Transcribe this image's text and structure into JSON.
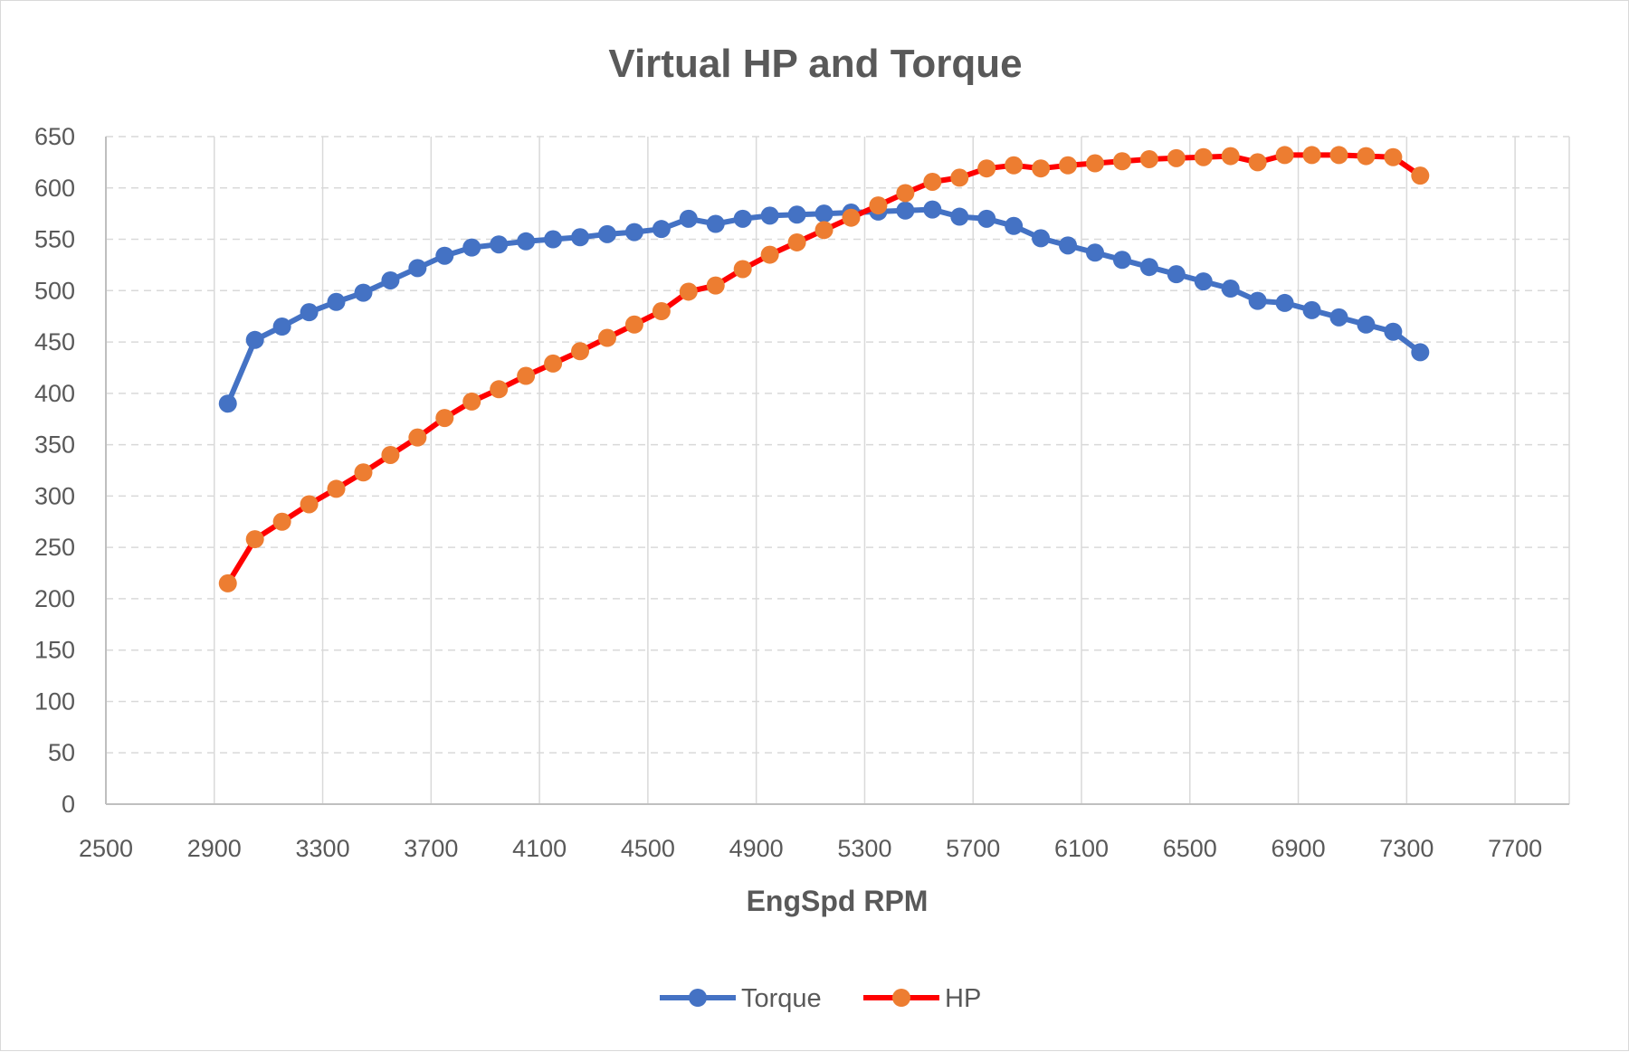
{
  "chart_data": {
    "type": "line",
    "title": "Virtual HP and Torque",
    "xlabel": "EngSpd RPM",
    "ylabel": "",
    "xlim": [
      2500,
      7900
    ],
    "ylim": [
      0,
      650
    ],
    "x_ticks": [
      2500,
      2900,
      3300,
      3700,
      4100,
      4500,
      4900,
      5300,
      5700,
      6100,
      6500,
      6900,
      7300,
      7700
    ],
    "y_ticks": [
      0,
      50,
      100,
      150,
      200,
      250,
      300,
      350,
      400,
      450,
      500,
      550,
      600,
      650
    ],
    "grid": true,
    "legend_position": "bottom",
    "x": [
      2950,
      3050,
      3150,
      3250,
      3350,
      3450,
      3550,
      3650,
      3750,
      3850,
      3950,
      4050,
      4150,
      4250,
      4350,
      4450,
      4550,
      4650,
      4750,
      4850,
      4950,
      5050,
      5150,
      5250,
      5350,
      5450,
      5550,
      5650,
      5750,
      5850,
      5950,
      6050,
      6150,
      6250,
      6350,
      6450,
      6550,
      6650,
      6750,
      6850,
      6950,
      7050,
      7150,
      7250,
      7350
    ],
    "series": [
      {
        "name": "Torque",
        "line_color": "#4472c4",
        "marker_color": "#4472c4",
        "values": [
          390,
          452,
          465,
          479,
          489,
          498,
          510,
          522,
          534,
          542,
          545,
          548,
          550,
          552,
          555,
          557,
          560,
          570,
          565,
          570,
          573,
          574,
          575,
          576,
          577,
          578,
          579,
          572,
          570,
          563,
          551,
          544,
          537,
          530,
          523,
          516,
          509,
          502,
          490,
          488,
          481,
          474,
          467,
          460,
          440
        ]
      },
      {
        "name": "HP",
        "line_color": "#ff0000",
        "marker_color": "#ed7d31",
        "values": [
          215,
          258,
          275,
          292,
          307,
          323,
          340,
          357,
          376,
          392,
          404,
          417,
          429,
          441,
          454,
          467,
          480,
          499,
          505,
          521,
          535,
          547,
          559,
          571,
          583,
          595,
          606,
          610,
          619,
          622,
          619,
          622,
          624,
          626,
          628,
          629,
          630,
          631,
          625,
          632,
          632,
          632,
          631,
          630,
          612
        ]
      }
    ]
  }
}
